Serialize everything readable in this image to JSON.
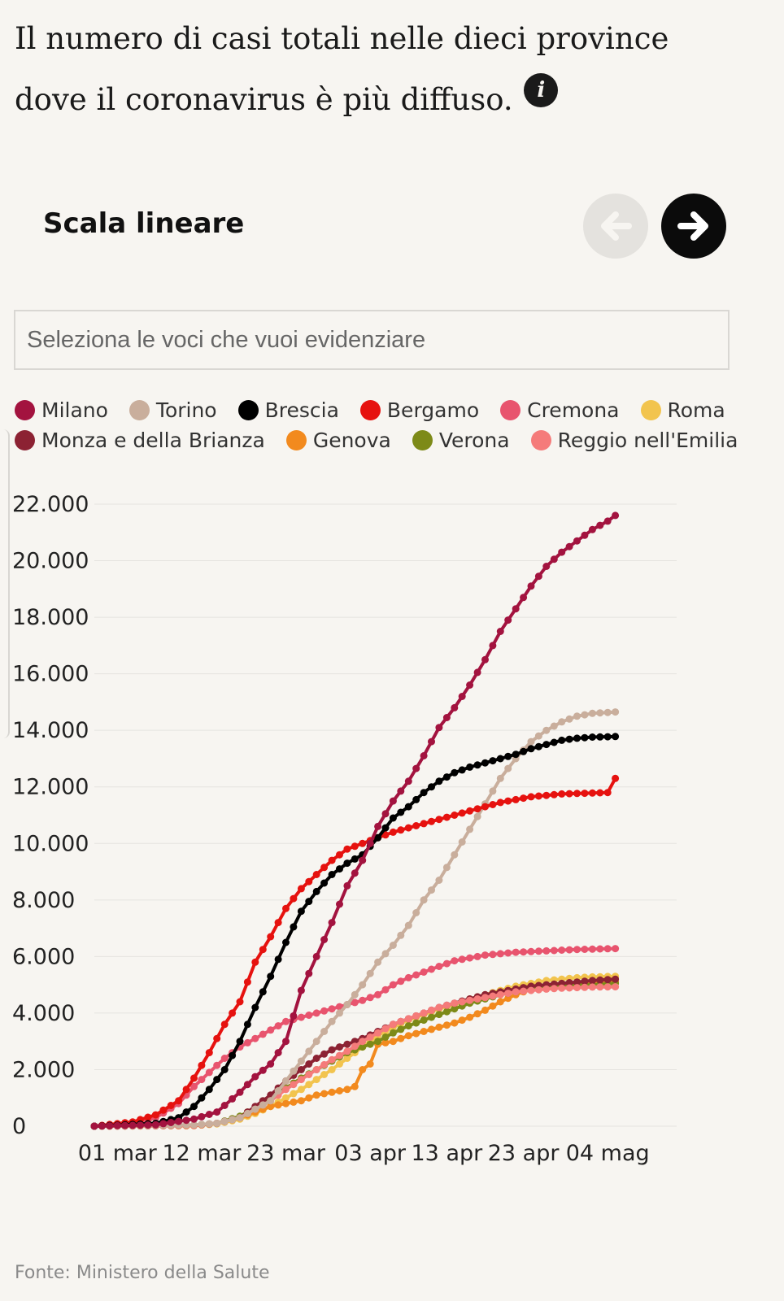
{
  "header": {
    "title": "Il numero di casi totali nelle dieci province dove il coronavirus è più diffuso.",
    "scale_label": "Scala lineare"
  },
  "search": {
    "placeholder": "Seleziona le voci che vuoi evidenziare"
  },
  "footer": {
    "source": "Fonte: Ministero della Salute"
  },
  "chart_data": {
    "type": "line",
    "title": "Il numero di casi totali nelle dieci province dove il coronavirus è più diffuso.",
    "xlabel": "",
    "ylabel": "",
    "ylim": [
      0,
      22000
    ],
    "y_ticks": [
      0,
      2000,
      4000,
      6000,
      8000,
      10000,
      12000,
      14000,
      16000,
      18000,
      20000,
      22000
    ],
    "y_tick_labels": [
      "0",
      "2.000",
      "4.000",
      "6.000",
      "8.000",
      "10.000",
      "12.000",
      "14.000",
      "16.000",
      "18.000",
      "20.000",
      "22.000"
    ],
    "x_start_day": -3,
    "x_end_day": 73,
    "x_ticks": [
      {
        "day": 0,
        "label": "01 mar"
      },
      {
        "day": 11,
        "label": "12 mar"
      },
      {
        "day": 22,
        "label": "23 mar"
      },
      {
        "day": 33,
        "label": "03 apr"
      },
      {
        "day": 43,
        "label": "13 apr"
      },
      {
        "day": 53,
        "label": "23 apr"
      },
      {
        "day": 64,
        "label": "04 mag"
      }
    ],
    "x_day_reference": "day 0 = 01 mar 2020",
    "legend": [
      "Milano",
      "Torino",
      "Brescia",
      "Bergamo",
      "Cremona",
      "Roma",
      "Monza e della Brianza",
      "Genova",
      "Verona",
      "Reggio nell'Emilia"
    ],
    "series": [
      {
        "name": "Milano",
        "color": "#a3133f",
        "points": [
          [
            -3,
            0
          ],
          [
            5,
            50
          ],
          [
            10,
            250
          ],
          [
            13,
            500
          ],
          [
            16,
            1200
          ],
          [
            18,
            1750
          ],
          [
            20,
            2200
          ],
          [
            22,
            3000
          ],
          [
            24,
            4800
          ],
          [
            26,
            6000
          ],
          [
            28,
            7200
          ],
          [
            30,
            8500
          ],
          [
            32,
            9400
          ],
          [
            34,
            10600
          ],
          [
            36,
            11500
          ],
          [
            38,
            12200
          ],
          [
            40,
            13100
          ],
          [
            42,
            14100
          ],
          [
            44,
            14800
          ],
          [
            46,
            15600
          ],
          [
            48,
            16500
          ],
          [
            50,
            17500
          ],
          [
            52,
            18300
          ],
          [
            54,
            19100
          ],
          [
            56,
            19800
          ],
          [
            58,
            20300
          ],
          [
            60,
            20700
          ],
          [
            62,
            21100
          ],
          [
            64,
            21400
          ],
          [
            65,
            21600
          ]
        ]
      },
      {
        "name": "Torino",
        "color": "#c9ae9c",
        "points": [
          [
            -3,
            0
          ],
          [
            10,
            50
          ],
          [
            13,
            100
          ],
          [
            16,
            300
          ],
          [
            18,
            600
          ],
          [
            20,
            900
          ],
          [
            22,
            1600
          ],
          [
            24,
            2300
          ],
          [
            26,
            3000
          ],
          [
            28,
            3700
          ],
          [
            30,
            4300
          ],
          [
            32,
            5000
          ],
          [
            34,
            5800
          ],
          [
            36,
            6400
          ],
          [
            38,
            7100
          ],
          [
            40,
            8000
          ],
          [
            42,
            8700
          ],
          [
            44,
            9600
          ],
          [
            46,
            10500
          ],
          [
            48,
            11400
          ],
          [
            50,
            12300
          ],
          [
            52,
            13000
          ],
          [
            54,
            13600
          ],
          [
            56,
            14000
          ],
          [
            58,
            14300
          ],
          [
            60,
            14500
          ],
          [
            62,
            14600
          ],
          [
            65,
            14650
          ]
        ]
      },
      {
        "name": "Brescia",
        "color": "#000000",
        "points": [
          [
            -3,
            0
          ],
          [
            5,
            100
          ],
          [
            8,
            300
          ],
          [
            10,
            700
          ],
          [
            12,
            1300
          ],
          [
            14,
            2000
          ],
          [
            16,
            3000
          ],
          [
            18,
            4200
          ],
          [
            20,
            5300
          ],
          [
            22,
            6500
          ],
          [
            24,
            7600
          ],
          [
            26,
            8300
          ],
          [
            28,
            8900
          ],
          [
            30,
            9300
          ],
          [
            32,
            9600
          ],
          [
            34,
            10200
          ],
          [
            36,
            10900
          ],
          [
            38,
            11300
          ],
          [
            40,
            11800
          ],
          [
            42,
            12200
          ],
          [
            44,
            12500
          ],
          [
            46,
            12700
          ],
          [
            48,
            12850
          ],
          [
            50,
            13000
          ],
          [
            52,
            13150
          ],
          [
            54,
            13350
          ],
          [
            56,
            13500
          ],
          [
            58,
            13650
          ],
          [
            60,
            13720
          ],
          [
            62,
            13760
          ],
          [
            65,
            13780
          ]
        ]
      },
      {
        "name": "Bergamo",
        "color": "#e6120f",
        "points": [
          [
            -3,
            0
          ],
          [
            2,
            150
          ],
          [
            5,
            400
          ],
          [
            8,
            900
          ],
          [
            10,
            1700
          ],
          [
            12,
            2600
          ],
          [
            14,
            3600
          ],
          [
            16,
            4400
          ],
          [
            18,
            5800
          ],
          [
            20,
            6700
          ],
          [
            22,
            7700
          ],
          [
            24,
            8400
          ],
          [
            26,
            8900
          ],
          [
            28,
            9400
          ],
          [
            30,
            9800
          ],
          [
            32,
            10000
          ],
          [
            34,
            10200
          ],
          [
            36,
            10400
          ],
          [
            38,
            10550
          ],
          [
            40,
            10700
          ],
          [
            42,
            10850
          ],
          [
            44,
            11000
          ],
          [
            46,
            11150
          ],
          [
            48,
            11300
          ],
          [
            50,
            11450
          ],
          [
            52,
            11550
          ],
          [
            54,
            11650
          ],
          [
            56,
            11700
          ],
          [
            58,
            11750
          ],
          [
            64,
            11800
          ],
          [
            65,
            12300
          ]
        ]
      },
      {
        "name": "Cremona",
        "color": "#e8546e",
        "points": [
          [
            -3,
            0
          ],
          [
            3,
            100
          ],
          [
            5,
            300
          ],
          [
            8,
            800
          ],
          [
            10,
            1400
          ],
          [
            12,
            1900
          ],
          [
            14,
            2400
          ],
          [
            16,
            2800
          ],
          [
            18,
            3100
          ],
          [
            20,
            3400
          ],
          [
            22,
            3700
          ],
          [
            24,
            3850
          ],
          [
            26,
            4000
          ],
          [
            28,
            4150
          ],
          [
            30,
            4300
          ],
          [
            32,
            4450
          ],
          [
            34,
            4650
          ],
          [
            36,
            5000
          ],
          [
            38,
            5250
          ],
          [
            40,
            5450
          ],
          [
            42,
            5650
          ],
          [
            44,
            5850
          ],
          [
            46,
            5950
          ],
          [
            48,
            6050
          ],
          [
            50,
            6100
          ],
          [
            52,
            6150
          ],
          [
            56,
            6200
          ],
          [
            60,
            6250
          ],
          [
            65,
            6280
          ]
        ]
      },
      {
        "name": "Roma",
        "color": "#f2c44e",
        "points": [
          [
            -3,
            0
          ],
          [
            10,
            20
          ],
          [
            13,
            80
          ],
          [
            16,
            250
          ],
          [
            18,
            450
          ],
          [
            20,
            700
          ],
          [
            22,
            1000
          ],
          [
            24,
            1300
          ],
          [
            26,
            1650
          ],
          [
            28,
            2000
          ],
          [
            30,
            2400
          ],
          [
            32,
            2800
          ],
          [
            34,
            3200
          ],
          [
            36,
            3500
          ],
          [
            38,
            3750
          ],
          [
            40,
            3950
          ],
          [
            42,
            4150
          ],
          [
            44,
            4300
          ],
          [
            46,
            4500
          ],
          [
            48,
            4650
          ],
          [
            50,
            4800
          ],
          [
            52,
            4950
          ],
          [
            54,
            5050
          ],
          [
            56,
            5150
          ],
          [
            58,
            5200
          ],
          [
            60,
            5250
          ],
          [
            62,
            5280
          ],
          [
            65,
            5300
          ]
        ]
      },
      {
        "name": "Monza e della Brianza",
        "color": "#8c2233",
        "points": [
          [
            -3,
            0
          ],
          [
            10,
            30
          ],
          [
            13,
            100
          ],
          [
            16,
            300
          ],
          [
            18,
            700
          ],
          [
            20,
            1100
          ],
          [
            22,
            1600
          ],
          [
            24,
            2000
          ],
          [
            26,
            2400
          ],
          [
            28,
            2700
          ],
          [
            30,
            2900
          ],
          [
            32,
            3100
          ],
          [
            34,
            3350
          ],
          [
            36,
            3600
          ],
          [
            38,
            3800
          ],
          [
            40,
            4000
          ],
          [
            42,
            4200
          ],
          [
            44,
            4350
          ],
          [
            46,
            4500
          ],
          [
            48,
            4650
          ],
          [
            50,
            4750
          ],
          [
            52,
            4850
          ],
          [
            54,
            4950
          ],
          [
            56,
            5000
          ],
          [
            58,
            5050
          ],
          [
            60,
            5100
          ],
          [
            62,
            5150
          ],
          [
            65,
            5200
          ]
        ]
      },
      {
        "name": "Genova",
        "color": "#f28a1e",
        "points": [
          [
            -3,
            0
          ],
          [
            10,
            20
          ],
          [
            13,
            100
          ],
          [
            16,
            300
          ],
          [
            18,
            500
          ],
          [
            20,
            700
          ],
          [
            22,
            800
          ],
          [
            24,
            900
          ],
          [
            26,
            1100
          ],
          [
            28,
            1200
          ],
          [
            30,
            1300
          ],
          [
            31,
            1400
          ],
          [
            32,
            2000
          ],
          [
            33,
            2200
          ],
          [
            34,
            2900
          ],
          [
            36,
            3000
          ],
          [
            38,
            3200
          ],
          [
            40,
            3350
          ],
          [
            42,
            3500
          ],
          [
            44,
            3650
          ],
          [
            46,
            3850
          ],
          [
            48,
            4100
          ],
          [
            50,
            4400
          ],
          [
            52,
            4650
          ],
          [
            54,
            4850
          ],
          [
            56,
            4950
          ],
          [
            58,
            5000
          ],
          [
            60,
            5050
          ],
          [
            62,
            5100
          ],
          [
            65,
            5100
          ]
        ]
      },
      {
        "name": "Verona",
        "color": "#7d8a18",
        "points": [
          [
            -3,
            0
          ],
          [
            10,
            30
          ],
          [
            13,
            100
          ],
          [
            16,
            350
          ],
          [
            18,
            650
          ],
          [
            20,
            1000
          ],
          [
            22,
            1350
          ],
          [
            24,
            1700
          ],
          [
            26,
            2000
          ],
          [
            28,
            2300
          ],
          [
            30,
            2600
          ],
          [
            32,
            2800
          ],
          [
            34,
            3000
          ],
          [
            36,
            3300
          ],
          [
            38,
            3550
          ],
          [
            40,
            3750
          ],
          [
            42,
            3950
          ],
          [
            44,
            4150
          ],
          [
            46,
            4350
          ],
          [
            48,
            4500
          ],
          [
            50,
            4650
          ],
          [
            52,
            4750
          ],
          [
            54,
            4850
          ],
          [
            56,
            4900
          ],
          [
            58,
            4950
          ],
          [
            60,
            5000
          ],
          [
            62,
            5000
          ],
          [
            65,
            5050
          ]
        ]
      },
      {
        "name": "Reggio nell'Emilia",
        "color": "#f57b7a",
        "points": [
          [
            -3,
            0
          ],
          [
            10,
            30
          ],
          [
            13,
            100
          ],
          [
            16,
            300
          ],
          [
            18,
            600
          ],
          [
            20,
            900
          ],
          [
            22,
            1300
          ],
          [
            24,
            1650
          ],
          [
            26,
            2000
          ],
          [
            28,
            2350
          ],
          [
            30,
            2650
          ],
          [
            32,
            3000
          ],
          [
            34,
            3300
          ],
          [
            36,
            3600
          ],
          [
            38,
            3800
          ],
          [
            40,
            4000
          ],
          [
            42,
            4200
          ],
          [
            44,
            4350
          ],
          [
            46,
            4450
          ],
          [
            48,
            4550
          ],
          [
            50,
            4650
          ],
          [
            52,
            4750
          ],
          [
            54,
            4800
          ],
          [
            56,
            4850
          ],
          [
            58,
            4880
          ],
          [
            60,
            4900
          ],
          [
            62,
            4920
          ],
          [
            65,
            4930
          ]
        ]
      }
    ]
  }
}
